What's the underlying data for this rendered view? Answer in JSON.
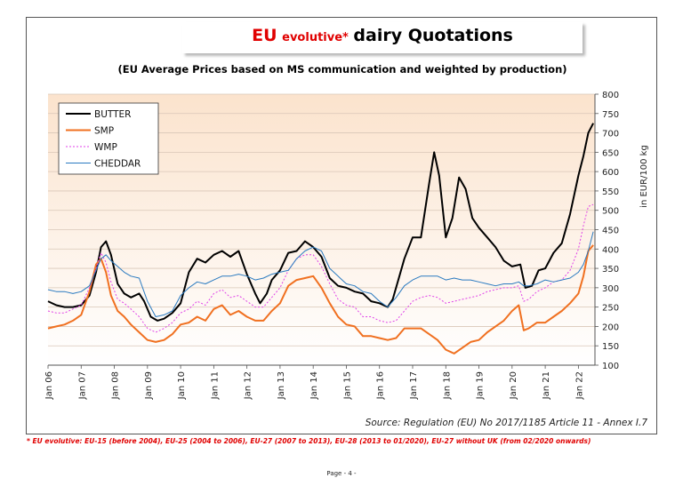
{
  "page": {
    "title_red": "EU",
    "title_evolutive": "evolutive*",
    "title_rest": "dairy Quotations",
    "subtitle": "(EU Average Prices based on MS communication and weighted by production)",
    "source": "Source: Regulation (EU) No 2017/1185 Article 11 - Annex I.7",
    "footnote": "* EU evolutive: EU-15 (before 2004), EU-25 (2004 to 2006), EU-27 (2007 to 2013), EU-28 (2013 to 01/2020), EU-27 without UK (from 02/2020 onwards)",
    "page_number": "Page - 4 -"
  },
  "chart_data": {
    "type": "line",
    "ylabel": "in EUR/100 kg",
    "ylim": [
      100,
      800
    ],
    "yticks": [
      100,
      150,
      200,
      250,
      300,
      350,
      400,
      450,
      500,
      550,
      600,
      650,
      700,
      750,
      800
    ],
    "xlim": [
      2006.0,
      2022.5
    ],
    "xticks": [
      "Jan 06",
      "Jan 07",
      "Jan 08",
      "Jan 09",
      "Jan 10",
      "Jan 11",
      "Jan 12",
      "Jan 13",
      "Jan 14",
      "Jan 15",
      "Jan 16",
      "Jan 17",
      "Jan 18",
      "Jan 19",
      "Jan 20",
      "Jan 21",
      "Jan 22"
    ],
    "grid": true,
    "legend_position": "top-left",
    "colors": {
      "BUTTER": "#000000",
      "SMP": "#f07020",
      "WMP": "#e040e8",
      "CHEDDAR": "#2a7ac0",
      "plot_top": "#fbe5d2",
      "plot_bottom": "#ffffff"
    },
    "series": [
      {
        "name": "BUTTER",
        "color": "#000000",
        "width": 2.0,
        "dash": "",
        "points": [
          [
            2006.0,
            265
          ],
          [
            2006.25,
            255
          ],
          [
            2006.5,
            250
          ],
          [
            2006.75,
            250
          ],
          [
            2007.0,
            255
          ],
          [
            2007.25,
            280
          ],
          [
            2007.45,
            340
          ],
          [
            2007.6,
            405
          ],
          [
            2007.75,
            420
          ],
          [
            2007.9,
            385
          ],
          [
            2008.1,
            310
          ],
          [
            2008.3,
            285
          ],
          [
            2008.5,
            275
          ],
          [
            2008.75,
            285
          ],
          [
            2008.9,
            265
          ],
          [
            2009.1,
            225
          ],
          [
            2009.3,
            215
          ],
          [
            2009.5,
            220
          ],
          [
            2009.75,
            235
          ],
          [
            2010.0,
            260
          ],
          [
            2010.25,
            340
          ],
          [
            2010.5,
            375
          ],
          [
            2010.75,
            365
          ],
          [
            2011.0,
            385
          ],
          [
            2011.25,
            395
          ],
          [
            2011.5,
            380
          ],
          [
            2011.75,
            395
          ],
          [
            2012.0,
            335
          ],
          [
            2012.25,
            285
          ],
          [
            2012.4,
            260
          ],
          [
            2012.6,
            285
          ],
          [
            2012.75,
            320
          ],
          [
            2013.0,
            345
          ],
          [
            2013.25,
            390
          ],
          [
            2013.5,
            395
          ],
          [
            2013.75,
            420
          ],
          [
            2014.0,
            405
          ],
          [
            2014.25,
            380
          ],
          [
            2014.5,
            325
          ],
          [
            2014.75,
            305
          ],
          [
            2015.0,
            300
          ],
          [
            2015.25,
            290
          ],
          [
            2015.5,
            285
          ],
          [
            2015.75,
            265
          ],
          [
            2016.0,
            260
          ],
          [
            2016.25,
            250
          ],
          [
            2016.4,
            270
          ],
          [
            2016.6,
            330
          ],
          [
            2016.75,
            375
          ],
          [
            2017.0,
            430
          ],
          [
            2017.25,
            430
          ],
          [
            2017.5,
            570
          ],
          [
            2017.65,
            650
          ],
          [
            2017.8,
            590
          ],
          [
            2018.0,
            430
          ],
          [
            2018.2,
            480
          ],
          [
            2018.4,
            585
          ],
          [
            2018.6,
            555
          ],
          [
            2018.8,
            480
          ],
          [
            2019.0,
            455
          ],
          [
            2019.25,
            430
          ],
          [
            2019.5,
            405
          ],
          [
            2019.75,
            370
          ],
          [
            2020.0,
            355
          ],
          [
            2020.25,
            360
          ],
          [
            2020.4,
            300
          ],
          [
            2020.6,
            305
          ],
          [
            2020.8,
            345
          ],
          [
            2021.0,
            350
          ],
          [
            2021.25,
            390
          ],
          [
            2021.5,
            415
          ],
          [
            2021.75,
            490
          ],
          [
            2022.0,
            590
          ],
          [
            2022.15,
            640
          ],
          [
            2022.3,
            700
          ],
          [
            2022.45,
            725
          ]
        ]
      },
      {
        "name": "SMP",
        "color": "#f07020",
        "width": 2.0,
        "dash": "",
        "points": [
          [
            2006.0,
            195
          ],
          [
            2006.25,
            200
          ],
          [
            2006.5,
            205
          ],
          [
            2006.75,
            215
          ],
          [
            2007.0,
            230
          ],
          [
            2007.25,
            290
          ],
          [
            2007.45,
            360
          ],
          [
            2007.6,
            375
          ],
          [
            2007.75,
            340
          ],
          [
            2007.9,
            280
          ],
          [
            2008.1,
            240
          ],
          [
            2008.3,
            225
          ],
          [
            2008.5,
            205
          ],
          [
            2008.75,
            185
          ],
          [
            2009.0,
            165
          ],
          [
            2009.25,
            160
          ],
          [
            2009.5,
            165
          ],
          [
            2009.75,
            180
          ],
          [
            2010.0,
            205
          ],
          [
            2010.25,
            210
          ],
          [
            2010.5,
            225
          ],
          [
            2010.75,
            215
          ],
          [
            2011.0,
            245
          ],
          [
            2011.25,
            255
          ],
          [
            2011.5,
            230
          ],
          [
            2011.75,
            240
          ],
          [
            2012.0,
            225
          ],
          [
            2012.25,
            215
          ],
          [
            2012.5,
            215
          ],
          [
            2012.75,
            240
          ],
          [
            2013.0,
            260
          ],
          [
            2013.25,
            305
          ],
          [
            2013.5,
            320
          ],
          [
            2013.75,
            325
          ],
          [
            2014.0,
            330
          ],
          [
            2014.25,
            300
          ],
          [
            2014.5,
            260
          ],
          [
            2014.75,
            225
          ],
          [
            2015.0,
            205
          ],
          [
            2015.25,
            200
          ],
          [
            2015.5,
            175
          ],
          [
            2015.75,
            175
          ],
          [
            2016.0,
            170
          ],
          [
            2016.25,
            165
          ],
          [
            2016.5,
            170
          ],
          [
            2016.75,
            195
          ],
          [
            2017.0,
            195
          ],
          [
            2017.25,
            195
          ],
          [
            2017.5,
            180
          ],
          [
            2017.75,
            165
          ],
          [
            2018.0,
            140
          ],
          [
            2018.25,
            130
          ],
          [
            2018.5,
            145
          ],
          [
            2018.75,
            160
          ],
          [
            2019.0,
            165
          ],
          [
            2019.25,
            185
          ],
          [
            2019.5,
            200
          ],
          [
            2019.75,
            215
          ],
          [
            2020.0,
            240
          ],
          [
            2020.2,
            255
          ],
          [
            2020.35,
            190
          ],
          [
            2020.5,
            195
          ],
          [
            2020.75,
            210
          ],
          [
            2021.0,
            210
          ],
          [
            2021.25,
            225
          ],
          [
            2021.5,
            240
          ],
          [
            2021.75,
            260
          ],
          [
            2022.0,
            285
          ],
          [
            2022.15,
            330
          ],
          [
            2022.3,
            395
          ],
          [
            2022.45,
            410
          ]
        ]
      },
      {
        "name": "WMP",
        "color": "#e040e8",
        "width": 1.0,
        "dash": "2,2",
        "points": [
          [
            2006.0,
            240
          ],
          [
            2006.25,
            235
          ],
          [
            2006.5,
            235
          ],
          [
            2006.75,
            245
          ],
          [
            2007.0,
            255
          ],
          [
            2007.25,
            300
          ],
          [
            2007.45,
            350
          ],
          [
            2007.6,
            390
          ],
          [
            2007.75,
            365
          ],
          [
            2007.9,
            315
          ],
          [
            2008.1,
            270
          ],
          [
            2008.3,
            260
          ],
          [
            2008.5,
            245
          ],
          [
            2008.75,
            225
          ],
          [
            2009.0,
            195
          ],
          [
            2009.25,
            185
          ],
          [
            2009.5,
            195
          ],
          [
            2009.75,
            210
          ],
          [
            2010.0,
            235
          ],
          [
            2010.25,
            245
          ],
          [
            2010.5,
            265
          ],
          [
            2010.75,
            255
          ],
          [
            2011.0,
            285
          ],
          [
            2011.25,
            295
          ],
          [
            2011.5,
            275
          ],
          [
            2011.75,
            280
          ],
          [
            2012.0,
            265
          ],
          [
            2012.25,
            250
          ],
          [
            2012.5,
            250
          ],
          [
            2012.75,
            275
          ],
          [
            2013.0,
            300
          ],
          [
            2013.25,
            345
          ],
          [
            2013.5,
            375
          ],
          [
            2013.75,
            385
          ],
          [
            2014.0,
            385
          ],
          [
            2014.25,
            355
          ],
          [
            2014.5,
            310
          ],
          [
            2014.75,
            270
          ],
          [
            2015.0,
            255
          ],
          [
            2015.25,
            250
          ],
          [
            2015.5,
            225
          ],
          [
            2015.75,
            225
          ],
          [
            2016.0,
            215
          ],
          [
            2016.25,
            210
          ],
          [
            2016.5,
            215
          ],
          [
            2016.75,
            240
          ],
          [
            2017.0,
            265
          ],
          [
            2017.25,
            275
          ],
          [
            2017.5,
            280
          ],
          [
            2017.75,
            275
          ],
          [
            2018.0,
            260
          ],
          [
            2018.25,
            265
          ],
          [
            2018.5,
            270
          ],
          [
            2018.75,
            275
          ],
          [
            2019.0,
            280
          ],
          [
            2019.25,
            290
          ],
          [
            2019.5,
            295
          ],
          [
            2019.75,
            300
          ],
          [
            2020.0,
            300
          ],
          [
            2020.2,
            305
          ],
          [
            2020.35,
            265
          ],
          [
            2020.5,
            270
          ],
          [
            2020.75,
            290
          ],
          [
            2021.0,
            300
          ],
          [
            2021.25,
            315
          ],
          [
            2021.5,
            320
          ],
          [
            2021.75,
            345
          ],
          [
            2022.0,
            400
          ],
          [
            2022.15,
            460
          ],
          [
            2022.3,
            510
          ],
          [
            2022.45,
            515
          ]
        ]
      },
      {
        "name": "CHEDDAR",
        "color": "#2a7ac0",
        "width": 1.0,
        "dash": "",
        "points": [
          [
            2006.0,
            295
          ],
          [
            2006.25,
            290
          ],
          [
            2006.5,
            290
          ],
          [
            2006.75,
            285
          ],
          [
            2007.0,
            290
          ],
          [
            2007.25,
            305
          ],
          [
            2007.45,
            345
          ],
          [
            2007.6,
            375
          ],
          [
            2007.75,
            385
          ],
          [
            2007.9,
            370
          ],
          [
            2008.1,
            355
          ],
          [
            2008.3,
            340
          ],
          [
            2008.5,
            330
          ],
          [
            2008.75,
            325
          ],
          [
            2009.0,
            265
          ],
          [
            2009.25,
            225
          ],
          [
            2009.5,
            230
          ],
          [
            2009.75,
            240
          ],
          [
            2010.0,
            280
          ],
          [
            2010.25,
            300
          ],
          [
            2010.5,
            315
          ],
          [
            2010.75,
            310
          ],
          [
            2011.0,
            320
          ],
          [
            2011.25,
            330
          ],
          [
            2011.5,
            330
          ],
          [
            2011.75,
            335
          ],
          [
            2012.0,
            330
          ],
          [
            2012.25,
            320
          ],
          [
            2012.5,
            325
          ],
          [
            2012.75,
            335
          ],
          [
            2013.0,
            340
          ],
          [
            2013.25,
            345
          ],
          [
            2013.5,
            375
          ],
          [
            2013.75,
            395
          ],
          [
            2014.0,
            405
          ],
          [
            2014.25,
            395
          ],
          [
            2014.5,
            350
          ],
          [
            2014.75,
            330
          ],
          [
            2015.0,
            310
          ],
          [
            2015.25,
            305
          ],
          [
            2015.5,
            290
          ],
          [
            2015.75,
            285
          ],
          [
            2016.0,
            265
          ],
          [
            2016.25,
            250
          ],
          [
            2016.5,
            275
          ],
          [
            2016.75,
            305
          ],
          [
            2017.0,
            320
          ],
          [
            2017.25,
            330
          ],
          [
            2017.5,
            330
          ],
          [
            2017.75,
            330
          ],
          [
            2018.0,
            320
          ],
          [
            2018.25,
            325
          ],
          [
            2018.5,
            320
          ],
          [
            2018.75,
            320
          ],
          [
            2019.0,
            315
          ],
          [
            2019.25,
            310
          ],
          [
            2019.5,
            305
          ],
          [
            2019.75,
            310
          ],
          [
            2020.0,
            310
          ],
          [
            2020.2,
            315
          ],
          [
            2020.35,
            305
          ],
          [
            2020.5,
            305
          ],
          [
            2020.75,
            310
          ],
          [
            2021.0,
            320
          ],
          [
            2021.25,
            315
          ],
          [
            2021.5,
            320
          ],
          [
            2021.75,
            325
          ],
          [
            2022.0,
            340
          ],
          [
            2022.15,
            360
          ],
          [
            2022.3,
            395
          ],
          [
            2022.45,
            445
          ]
        ]
      }
    ]
  }
}
